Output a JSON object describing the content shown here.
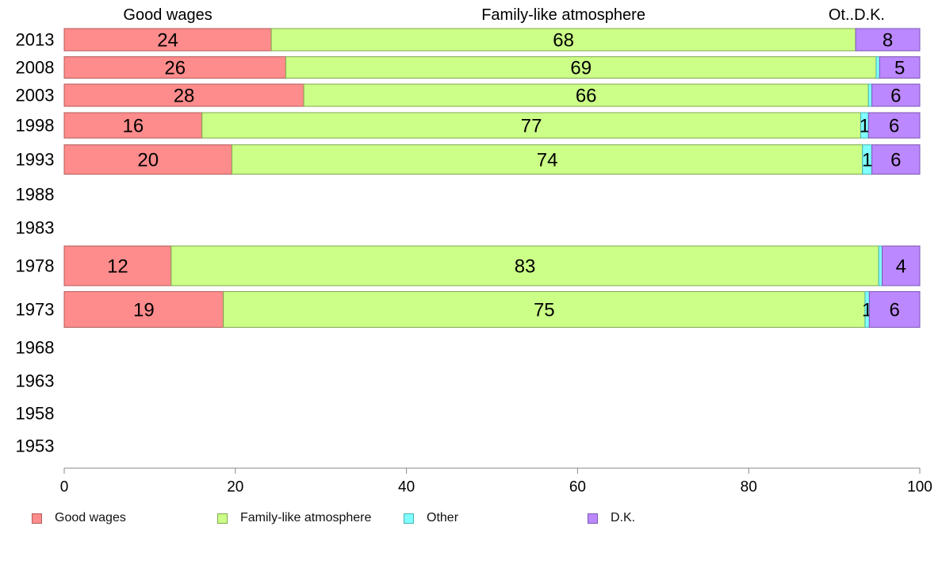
{
  "chart_data": {
    "type": "bar",
    "orientation": "horizontal",
    "stacked": true,
    "title": "",
    "xlabel": "",
    "ylabel": "",
    "xlim": [
      0,
      100
    ],
    "x_ticks": [
      "0",
      "20",
      "40",
      "60",
      "80",
      "100"
    ],
    "categories": [
      "2013",
      "2008",
      "2003",
      "1998",
      "1993",
      "1988",
      "1983",
      "1978",
      "1973",
      "1968",
      "1963",
      "1958",
      "1953"
    ],
    "series": [
      {
        "name": "Good wages",
        "color": "#ff8c8c",
        "stroke": "#b35a5a",
        "values": [
          24.2,
          25.9,
          28.0,
          16.1,
          19.6,
          null,
          null,
          12.5,
          18.6,
          null,
          null,
          null,
          null
        ]
      },
      {
        "name": "Family-like atmosphere",
        "color": "#ccff88",
        "stroke": "#7fa84d",
        "values": [
          68.3,
          69.0,
          66.0,
          77.0,
          73.7,
          null,
          null,
          82.7,
          75.0,
          null,
          null,
          null,
          null
        ]
      },
      {
        "name": "Other",
        "color": "#7fffff",
        "stroke": "#4ab3b3",
        "values": [
          0,
          0.4,
          0.4,
          0.9,
          1.1,
          null,
          null,
          0.4,
          0.5,
          null,
          null,
          null,
          null
        ]
      },
      {
        "name": "D.K.",
        "color": "#bb88ff",
        "stroke": "#7d56b3",
        "values": [
          7.5,
          4.7,
          5.6,
          6.0,
          5.6,
          null,
          null,
          4.4,
          5.9,
          null,
          null,
          null,
          null
        ]
      }
    ],
    "data_labels": [
      [
        "24",
        "68",
        "",
        "8"
      ],
      [
        "26",
        "69",
        "",
        "5"
      ],
      [
        "28",
        "66",
        "",
        "6"
      ],
      [
        "16",
        "77",
        "1",
        "6"
      ],
      [
        "20",
        "74",
        "1",
        "6"
      ],
      null,
      null,
      [
        "12",
        "83",
        "",
        "4"
      ],
      [
        "19",
        "75",
        "1",
        "6"
      ],
      null,
      null,
      null,
      null
    ],
    "top_labels": [
      "Good wages",
      "Family-like atmosphere",
      "Ot..",
      "D.K."
    ],
    "legend": {
      "position": "bottom",
      "items": [
        "Good wages",
        "Family-like atmosphere",
        "Other",
        "D.K."
      ]
    },
    "grid": false
  }
}
